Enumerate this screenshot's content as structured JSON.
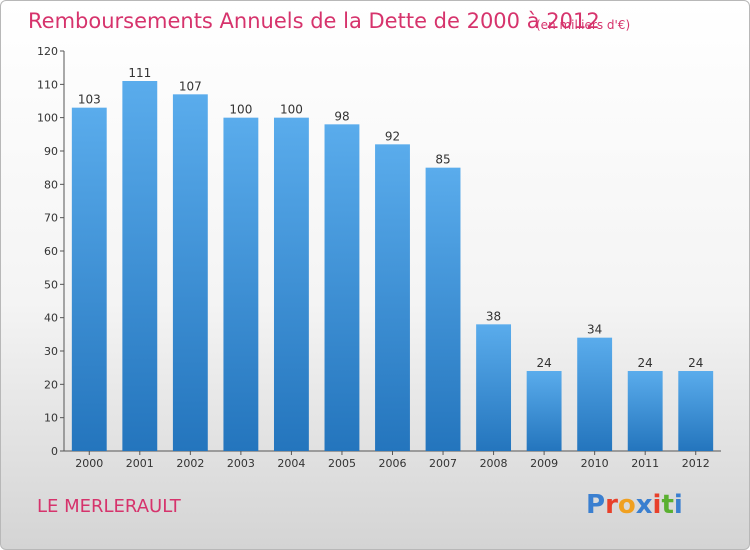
{
  "header": {
    "title": "Remboursements Annuels de la Dette de 2000 à 2012",
    "subtitle": "(en milliers d'€)"
  },
  "footer": {
    "commune": "LE MERLERAULT",
    "logo": "Proxiti"
  },
  "colors": {
    "title": "#d6336c",
    "bar_top": "#5aacec",
    "bar_bottom": "#2475bd",
    "logo_letters": [
      "#3a7fd0",
      "#e8402a",
      "#f0a020",
      "#3a7fd0",
      "#e8402a",
      "#5ab030",
      "#3a7fd0"
    ]
  },
  "chart_data": {
    "type": "bar",
    "categories": [
      "2000",
      "2001",
      "2002",
      "2003",
      "2004",
      "2005",
      "2006",
      "2007",
      "2008",
      "2009",
      "2010",
      "2011",
      "2012"
    ],
    "values": [
      103,
      111,
      107,
      100,
      100,
      98,
      92,
      85,
      38,
      24,
      34,
      24,
      24
    ],
    "title": "Remboursements Annuels de la Dette de 2000 à 2012",
    "subtitle": "(en milliers d'€)",
    "ylim": [
      0,
      120
    ],
    "yticks": [
      0,
      10,
      20,
      30,
      40,
      50,
      60,
      70,
      80,
      90,
      100,
      110,
      120
    ],
    "grid": false,
    "data_labels": true
  }
}
